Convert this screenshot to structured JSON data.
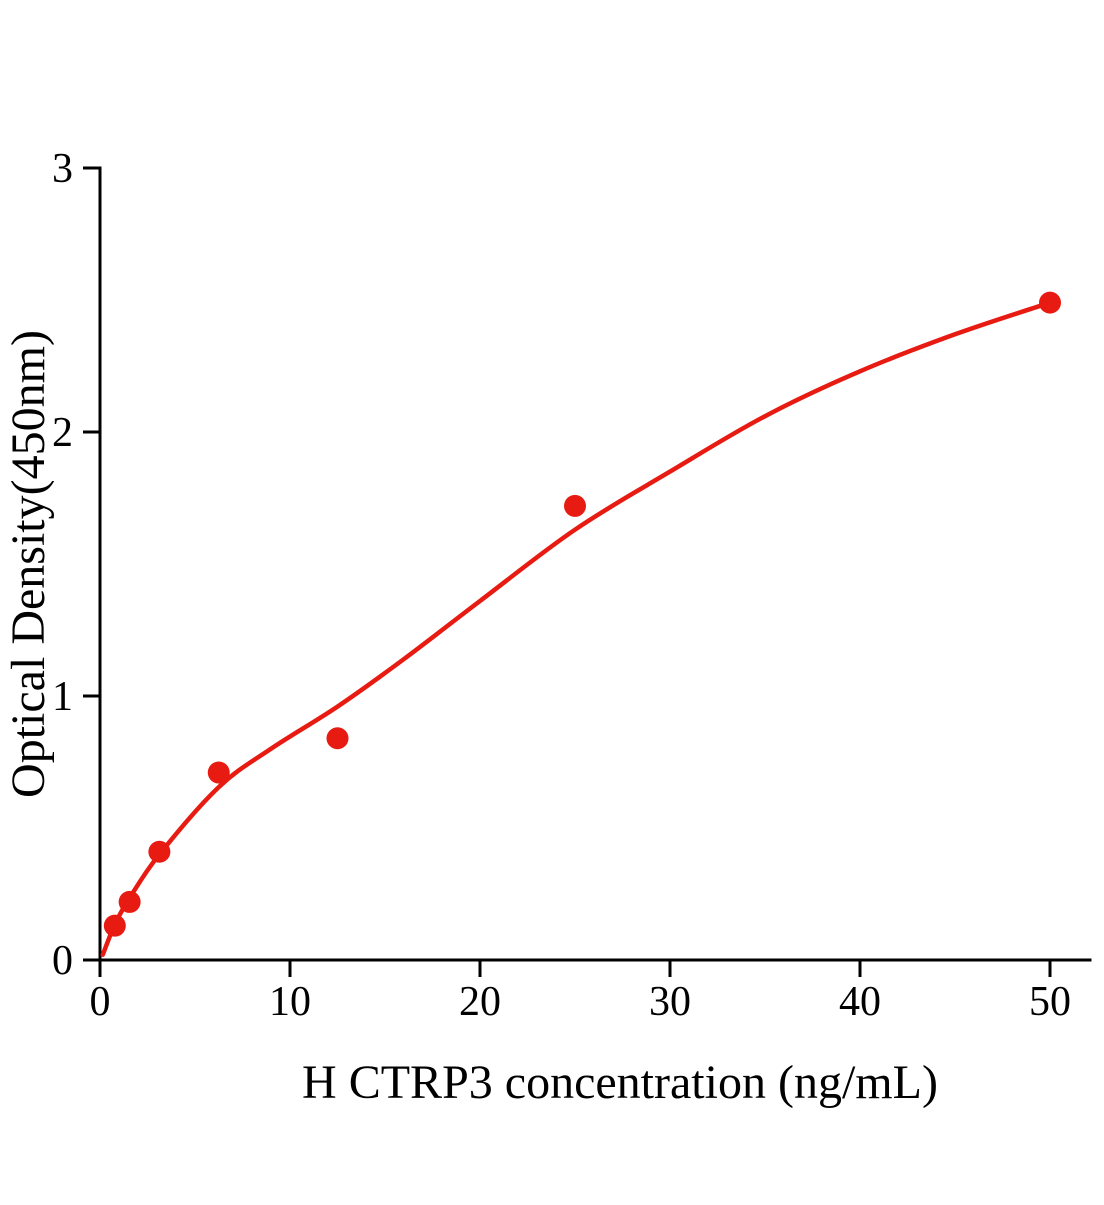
{
  "chart_data": {
    "type": "scatter",
    "title": "",
    "xlabel": "H CTRP3 concentration (ng/mL)",
    "ylabel": "Optical Density(450nm)",
    "xlim": [
      0,
      52
    ],
    "ylim": [
      0,
      3
    ],
    "xticks": [
      0,
      10,
      20,
      30,
      40,
      50
    ],
    "yticks": [
      0,
      1,
      2,
      3
    ],
    "grid": false,
    "legend": "none",
    "series": [
      {
        "name": "H CTRP3 standard",
        "marker": "circle",
        "color": "#e81b12",
        "x": [
          0.78,
          1.56,
          3.125,
          6.25,
          12.5,
          25,
          50
        ],
        "y": [
          0.13,
          0.22,
          0.41,
          0.71,
          0.84,
          1.72,
          2.49
        ]
      }
    ],
    "fit_curve": {
      "name": "fitted standard curve",
      "color": "#e81b12",
      "x": [
        0.15,
        0.78,
        1.56,
        3.125,
        6.25,
        9,
        12.5,
        16,
        20,
        25,
        30,
        35,
        40,
        45,
        50
      ],
      "y": [
        0.02,
        0.135,
        0.235,
        0.4,
        0.655,
        0.8,
        0.96,
        1.14,
        1.36,
        1.63,
        1.85,
        2.06,
        2.23,
        2.37,
        2.49
      ]
    },
    "axis_color": "#000000",
    "background_color": "#ffffff"
  }
}
